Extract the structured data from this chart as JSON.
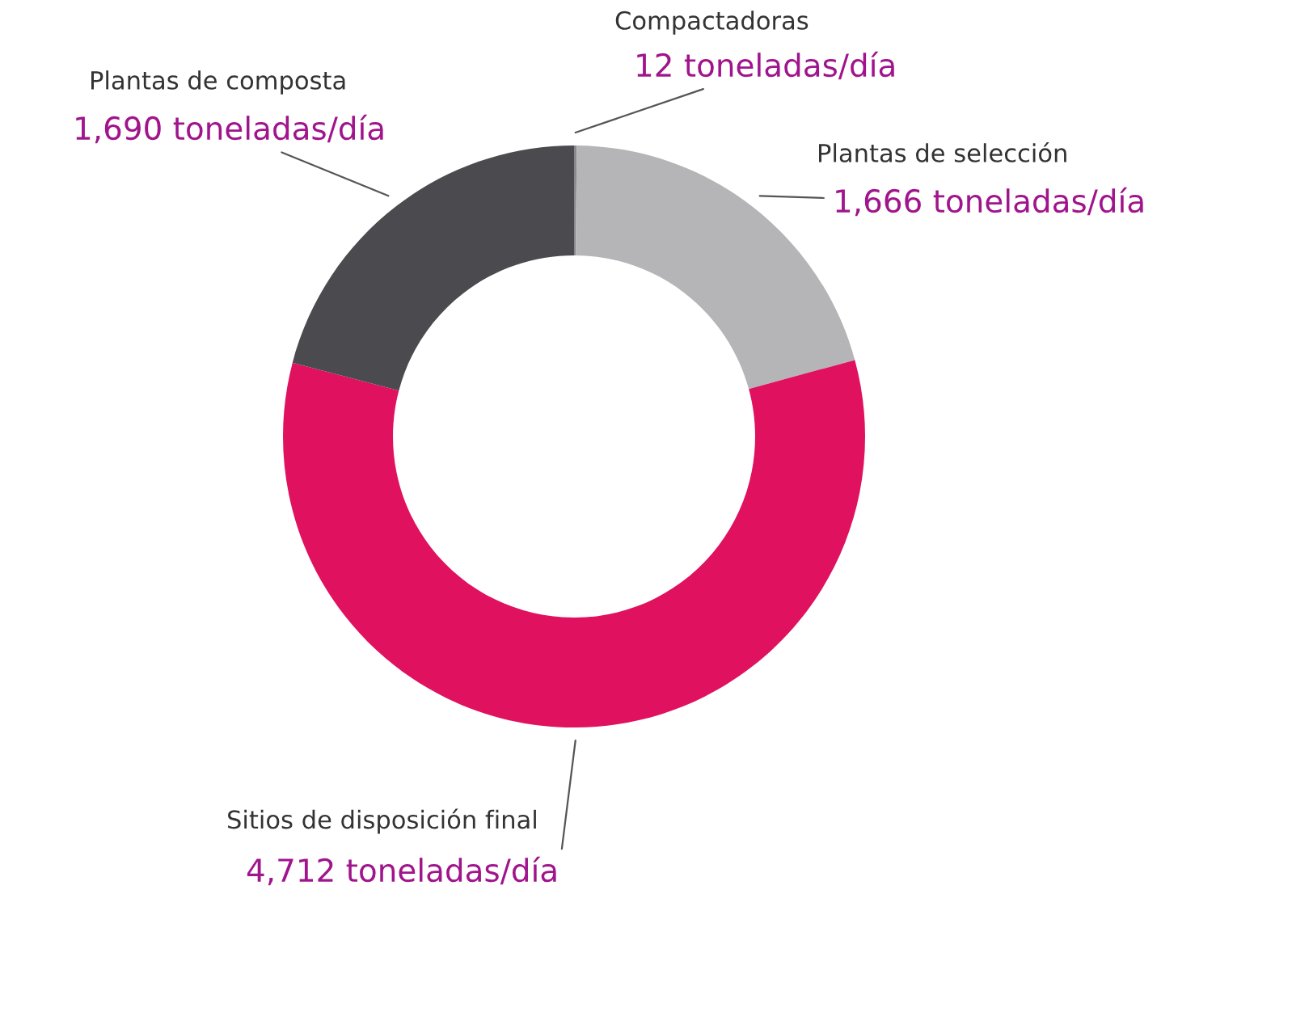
{
  "chart_data": {
    "type": "donut",
    "categories": [
      "Compactadoras",
      "Plantas de selección",
      "Sitios de disposición final",
      "Plantas de composta"
    ],
    "values": [
      12,
      1666,
      4712,
      1690
    ],
    "value_labels": [
      "12 toneladas/día",
      "1,666 toneladas/día",
      "4,712 toneladas/día",
      "1,690 toneladas/día"
    ],
    "colors": [
      "#8a8a8c",
      "#b5b5b7",
      "#e0115f",
      "#4b4b4f"
    ]
  }
}
